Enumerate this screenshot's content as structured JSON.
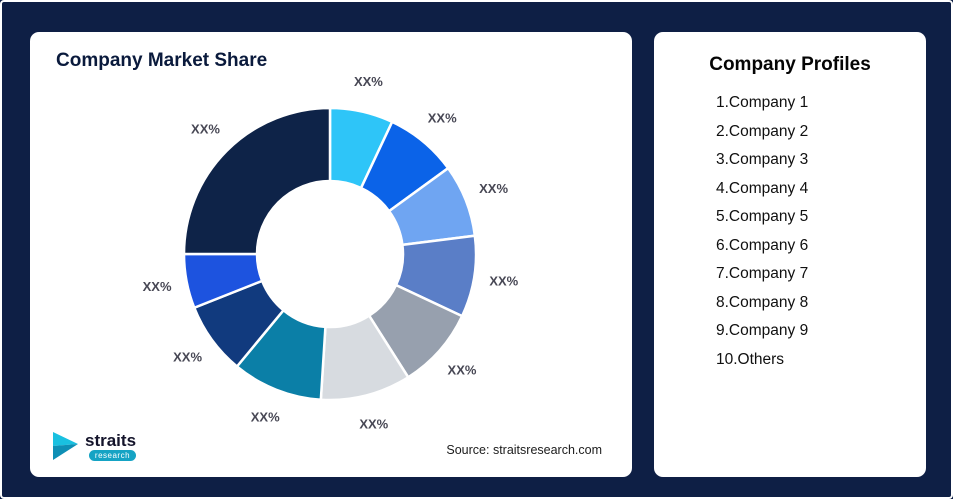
{
  "frame": {
    "background_color": "#0E1F45",
    "border_color": "#FFFFFF"
  },
  "left_card": {
    "title": "Company Market Share",
    "source": "Source: straitsresearch.com",
    "logo": {
      "brand": "straits",
      "sub": "research",
      "accent_color": "#15A3C4"
    }
  },
  "right_card": {
    "title": "Company Profiles",
    "items": [
      "1.Company 1",
      "2.Company 2",
      "3.Company 3",
      "4.Company 4",
      "5.Company 5",
      "6.Company 6",
      "7.Company 7",
      "8.Company 8",
      "9.Company 9",
      "10.Others"
    ]
  },
  "chart_data": {
    "type": "pie",
    "donut": true,
    "title": "Company Market Share",
    "inner_radius_ratio": 0.5,
    "start_angle_deg": 0,
    "legend_position": "none",
    "label_color": "#474754",
    "segments": [
      {
        "label": "XX%",
        "value": 7,
        "color": "#2EC5F8"
      },
      {
        "label": "XX%",
        "value": 8,
        "color": "#0B63E8"
      },
      {
        "label": "XX%",
        "value": 8,
        "color": "#6FA5F2"
      },
      {
        "label": "XX%",
        "value": 9,
        "color": "#5A7EC7"
      },
      {
        "label": "XX%",
        "value": 9,
        "color": "#97A0AE"
      },
      {
        "label": "XX%",
        "value": 10,
        "color": "#D7DBE0"
      },
      {
        "label": "XX%",
        "value": 10,
        "color": "#0B7FA7"
      },
      {
        "label": "XX%",
        "value": 8,
        "color": "#113A7E"
      },
      {
        "label": "XX%",
        "value": 6,
        "color": "#1D53DF"
      },
      {
        "label": "XX%",
        "value": 25,
        "color": "#0E2348"
      }
    ]
  }
}
